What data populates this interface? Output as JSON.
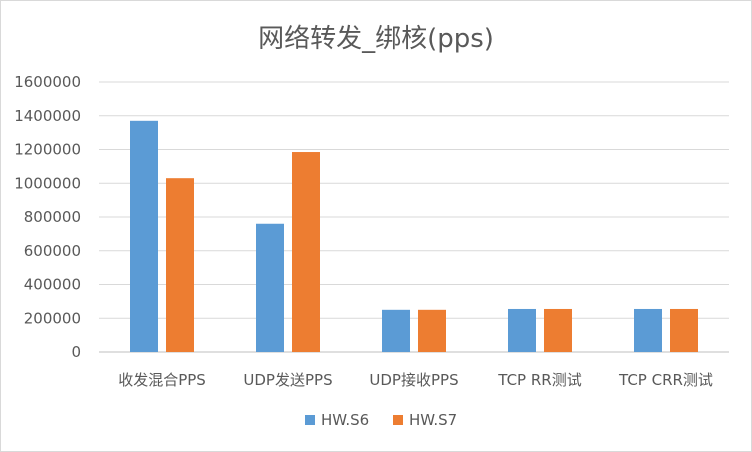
{
  "chart_data": {
    "type": "bar",
    "title": "网络转发_绑核(pps)",
    "categories": [
      "收发混合PPS",
      "UDP发送PPS",
      "UDP接收PPS",
      "TCP RR测试",
      "TCP CRR测试"
    ],
    "series": [
      {
        "name": "HW.S6",
        "color": "#5b9bd5",
        "values": [
          1370000,
          760000,
          250000,
          255000,
          255000
        ]
      },
      {
        "name": "HW.S7",
        "color": "#ed7d31",
        "values": [
          1030000,
          1185000,
          250000,
          255000,
          255000
        ]
      }
    ],
    "ylim": [
      0,
      1600000
    ],
    "yticks": [
      "0",
      "200000",
      "400000",
      "600000",
      "800000",
      "1000000",
      "1200000",
      "1400000",
      "1600000"
    ],
    "grid": true,
    "legend_position": "bottom"
  }
}
